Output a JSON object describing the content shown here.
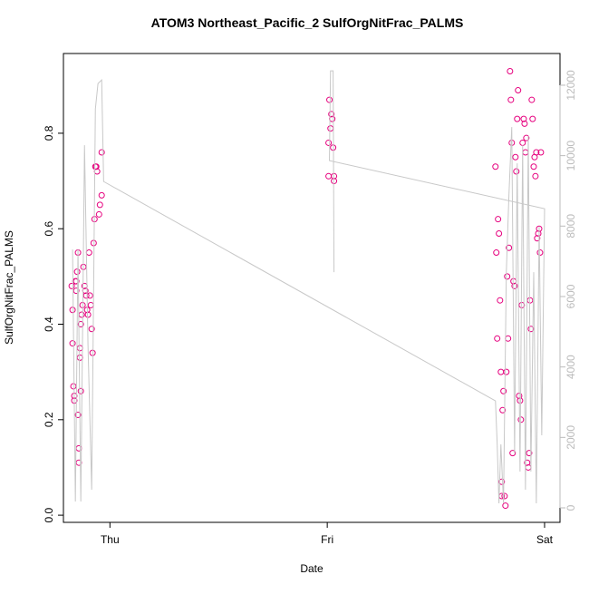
{
  "chart_data": {
    "type": "scatter",
    "title": "ATOM3 Northeast_Pacific_2 SulfOrgNitFrac_PALMS",
    "x_label": "Date",
    "y_label": "SulfOrgNitFrac_PALMS",
    "xlim": [
      -0.214,
      2.071
    ],
    "xticks": [
      {
        "value": 0,
        "label": "Thu"
      },
      {
        "value": 1,
        "label": "Fri"
      },
      {
        "value": 2,
        "label": "Sat"
      }
    ],
    "ylim": [
      -0.015,
      0.967
    ],
    "yticks": [
      {
        "value": 0,
        "label": "0.0"
      },
      0.2,
      0.4,
      0.6,
      0.8
    ],
    "y2lim": [
      -412,
      12900
    ],
    "y2ticks": [
      0,
      2000,
      4000,
      6000,
      8000,
      10000,
      12000
    ],
    "series": [
      {
        "color": "#e6007e",
        "x": [
          -0.176,
          -0.172,
          -0.172,
          -0.168,
          -0.164,
          -0.164,
          -0.159,
          -0.155,
          -0.155,
          -0.151,
          -0.147,
          -0.147,
          -0.143,
          -0.143,
          -0.138,
          -0.138,
          -0.134,
          -0.134,
          -0.13,
          -0.126,
          -0.122,
          -0.117,
          -0.113,
          -0.109,
          -0.105,
          -0.101,
          -0.096,
          -0.092,
          -0.088,
          -0.084,
          -0.08,
          -0.075,
          -0.071,
          -0.067,
          -0.063,
          -0.059,
          -0.05,
          -0.046,
          -0.038,
          -0.038,
          1.006,
          1.01,
          1.015,
          1.019,
          1.023,
          1.027,
          1.006,
          1.031,
          1.031,
          1.774,
          1.778,
          1.782,
          1.786,
          1.79,
          1.795,
          1.799,
          1.803,
          1.803,
          1.807,
          1.811,
          1.816,
          1.82,
          1.824,
          1.828,
          1.832,
          1.836,
          1.841,
          1.845,
          1.849,
          1.853,
          1.857,
          1.862,
          1.866,
          1.87,
          1.874,
          1.878,
          1.883,
          1.887,
          1.891,
          1.895,
          1.899,
          1.904,
          1.908,
          1.912,
          1.916,
          1.92,
          1.925,
          1.929,
          1.933,
          1.937,
          1.941,
          1.945,
          1.95,
          1.954,
          1.958,
          1.962,
          1.966,
          1.971,
          1.975,
          1.979,
          1.983
        ],
        "values": [
          0.48,
          0.43,
          0.36,
          0.27,
          0.25,
          0.24,
          0.49,
          0.49,
          0.47,
          0.51,
          0.55,
          0.21,
          0.14,
          0.11,
          0.33,
          0.35,
          0.26,
          0.4,
          0.42,
          0.44,
          0.52,
          0.48,
          0.47,
          0.46,
          0.43,
          0.42,
          0.55,
          0.46,
          0.44,
          0.39,
          0.34,
          0.57,
          0.62,
          0.73,
          0.73,
          0.72,
          0.63,
          0.65,
          0.67,
          0.76,
          0.78,
          0.87,
          0.81,
          0.84,
          0.83,
          0.77,
          0.71,
          0.7,
          0.71,
          0.73,
          0.55,
          0.37,
          0.62,
          0.59,
          0.45,
          0.3,
          0.07,
          0.04,
          0.22,
          0.26,
          0.04,
          0.02,
          0.3,
          0.5,
          0.37,
          0.56,
          0.93,
          0.87,
          0.78,
          0.13,
          0.49,
          0.48,
          0.75,
          0.72,
          0.83,
          0.89,
          0.25,
          0.24,
          0.2,
          0.44,
          0.78,
          0.83,
          0.82,
          0.76,
          0.79,
          0.11,
          0.1,
          0.13,
          0.45,
          0.39,
          0.87,
          0.83,
          0.73,
          0.75,
          0.71,
          0.76,
          0.58,
          0.59,
          0.6,
          0.55,
          0.76
        ]
      },
      {
        "color": "#c8c8c8",
        "axis": "y2",
        "x": [
          -0.172,
          -0.159,
          -0.147,
          -0.134,
          -0.117,
          -0.101,
          -0.084,
          -0.067,
          -0.055,
          -0.038,
          -0.029,
          1.774,
          1.782,
          1.79,
          1.799,
          1.811,
          1.824,
          1.836,
          1.849,
          1.862,
          1.874,
          1.887,
          1.899,
          1.912,
          1.925,
          1.937,
          1.95,
          1.962,
          1.975,
          1.987,
          2.0,
          1.01,
          1.015,
          1.027,
          1.031
        ],
        "values": [
          7336,
          180,
          7336,
          180,
          10296,
          4633,
          515,
          11326,
          12047,
          12150,
          9266,
          3037,
          1802,
          129,
          1802,
          129,
          6692,
          8880,
          10811,
          1544,
          9781,
          1030,
          10296,
          515,
          10553,
          1030,
          6692,
          129,
          7979,
          2059,
          8494,
          9858,
          12407,
          12407,
          6692
        ]
      }
    ]
  }
}
